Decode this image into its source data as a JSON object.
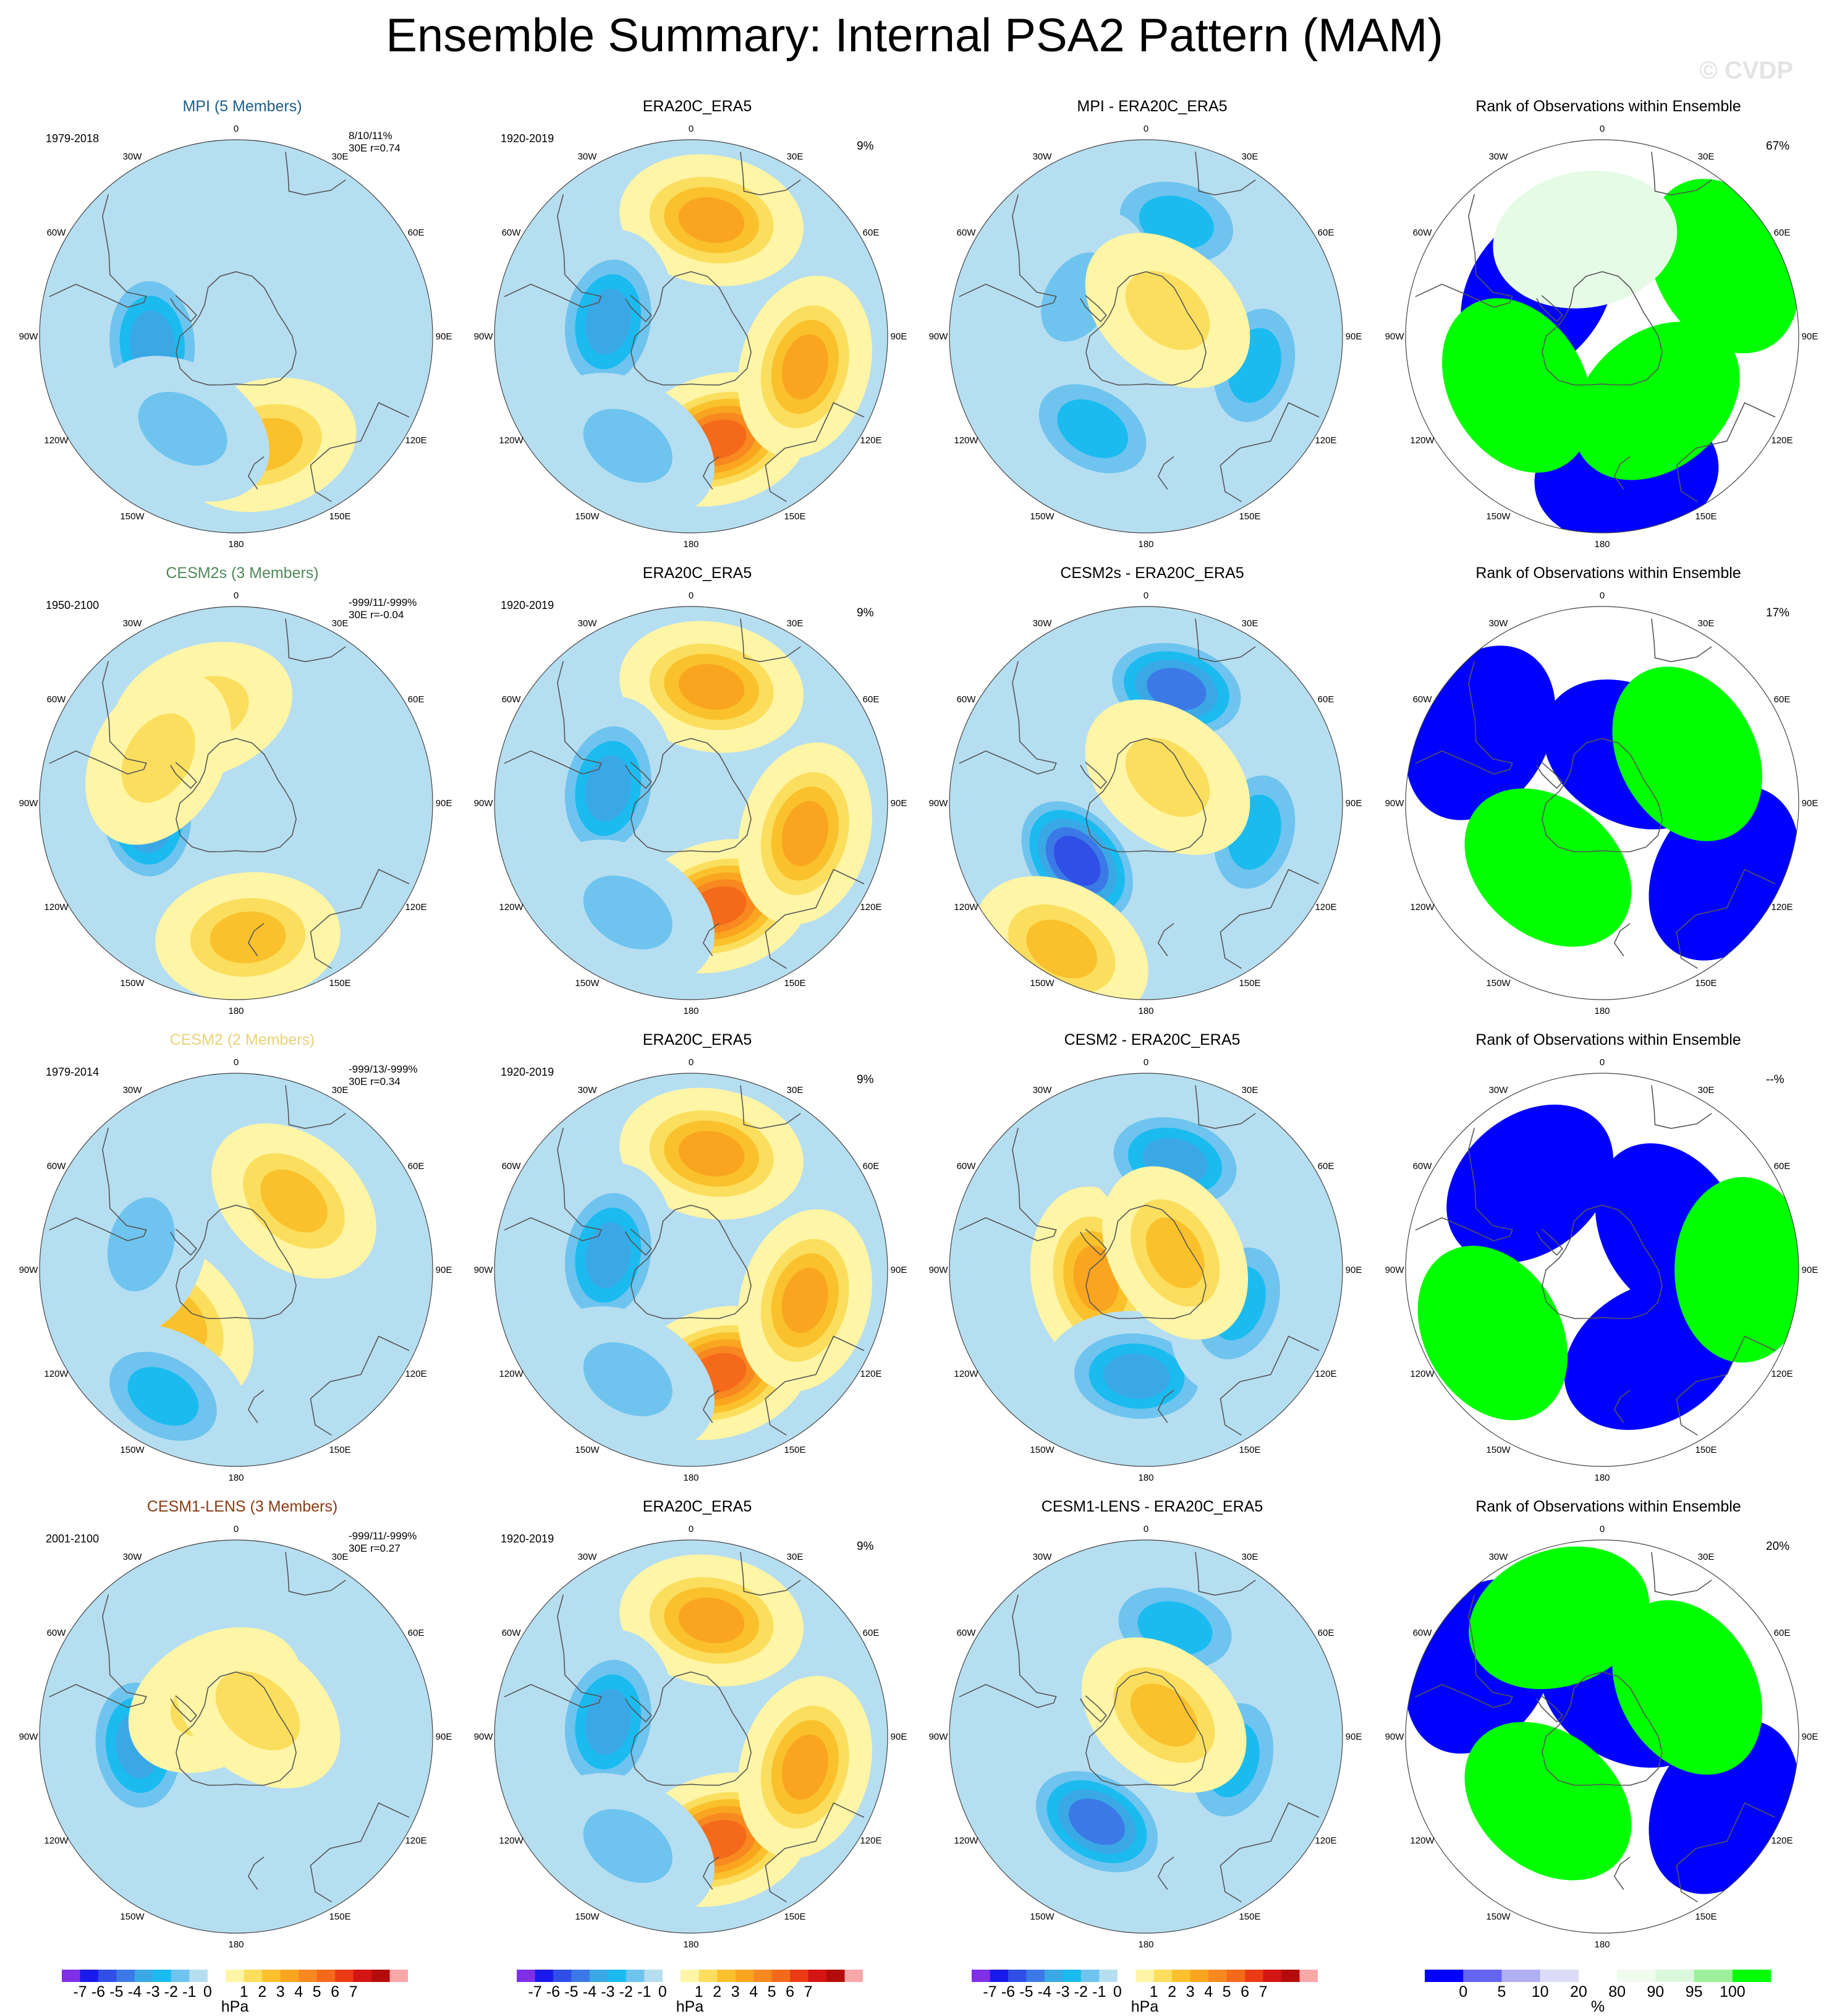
{
  "title": "Ensemble Summary: Internal PSA2 Pattern (MAM)",
  "watermark": "© CVDP",
  "longitude_labels": [
    "0",
    "30E",
    "60E",
    "90E",
    "120E",
    "150E",
    "180",
    "150W",
    "120W",
    "90W",
    "60W",
    "30W"
  ],
  "colors": {
    "land_outline": "#555555",
    "rank_blue": "#0000ff",
    "rank_green": "#00ff00",
    "rank_paleGreen": "#e6fbe6",
    "hpa_levels": [
      "#7f30e6",
      "#1a1aeb",
      "#2f4fe6",
      "#3b7ae6",
      "#3ba8e6",
      "#1bbbf0",
      "#6ec4ee",
      "#b6def1",
      "#ffffff",
      "#fff5a6",
      "#fbde5e",
      "#fac12c",
      "#f9a520",
      "#f88820",
      "#f46a1a",
      "#ea3b14",
      "#d51414",
      "#b40c0c",
      "#f9a8a8"
    ],
    "rank_levels": [
      "#0000ff",
      "#6464f0",
      "#b0b0f0",
      "#dcdcf8",
      "#ffffff",
      "#f0fbf0",
      "#dcf8dc",
      "#9cf09c",
      "#00ff00"
    ]
  },
  "chart_data": {
    "type": "heatmap",
    "projection": "south-polar stereographic",
    "units": "hPa",
    "rows": [
      {
        "model": "MPI (5 Members)",
        "model_color": "#1e5f8a",
        "model_period": "1979-2018",
        "stats_line1": "8/10/11%",
        "stats_line2": "30E      r=0.74",
        "obs_title": "ERA20C_ERA5",
        "obs_period": "1920-2019",
        "obs_pct": "9%",
        "diff_title": "MPI - ERA20C_ERA5",
        "rank_title": "Rank of Observations within Ensemble",
        "rank_pct": "67%",
        "model_centers": [
          {
            "lon": -95,
            "lat": -60,
            "value": -2.4
          },
          {
            "lon": 165,
            "lat": -50,
            "value": 1.6
          },
          {
            "lon": -150,
            "lat": -52,
            "value": -0.7
          }
        ],
        "obs_centers": [
          {
            "lon": 165,
            "lat": -52,
            "value": 4.2
          },
          {
            "lon": 10,
            "lat": -48,
            "value": 2.8
          },
          {
            "lon": -80,
            "lat": -60,
            "value": -3.0
          },
          {
            "lon": 105,
            "lat": -48,
            "value": 2.2
          },
          {
            "lon": -150,
            "lat": -45,
            "value": -0.9
          }
        ],
        "diff_centers": [
          {
            "lon": 15,
            "lat": -48,
            "value": -1.8
          },
          {
            "lon": -150,
            "lat": -52,
            "value": -1.8
          },
          {
            "lon": 105,
            "lat": -50,
            "value": -1.8
          },
          {
            "lon": -60,
            "lat": -62,
            "value": -0.8
          },
          {
            "lon": 40,
            "lat": -78,
            "value": 0.8
          }
        ],
        "rank_centers": [
          {
            "lon": 170,
            "lat": -40,
            "value": 0
          },
          {
            "lon": -55,
            "lat": -62,
            "value": 0
          },
          {
            "lon": 60,
            "lat": -40,
            "value": 100
          },
          {
            "lon": -120,
            "lat": -55,
            "value": 100
          },
          {
            "lon": 140,
            "lat": -60,
            "value": 100
          },
          {
            "lon": -10,
            "lat": -55,
            "value": 88
          }
        ]
      },
      {
        "model": "CESM2s (3 Members)",
        "model_color": "#4f8a5a",
        "model_period": "1950-2100",
        "stats_line1": "-999/11/-999%",
        "stats_line2": "30E r=-0.04",
        "obs_title": "ERA20C_ERA5",
        "obs_period": "1920-2019",
        "obs_pct": "9%",
        "diff_title": "CESM2s - ERA20C_ERA5",
        "rank_title": "Rank of Observations within Ensemble",
        "rank_pct": "17%",
        "model_centers": [
          {
            "lon": -95,
            "lat": -58,
            "value": -3.8
          },
          {
            "lon": 175,
            "lat": -42,
            "value": 1.3
          },
          {
            "lon": -20,
            "lat": -55,
            "value": 0.9
          },
          {
            "lon": -60,
            "lat": -58,
            "value": 0.8
          }
        ],
        "obs_centers": [
          {
            "lon": 165,
            "lat": -52,
            "value": 4.2
          },
          {
            "lon": 10,
            "lat": -48,
            "value": 2.8
          },
          {
            "lon": -80,
            "lat": -60,
            "value": -3.0
          },
          {
            "lon": 105,
            "lat": -48,
            "value": 2.2
          },
          {
            "lon": -150,
            "lat": -45,
            "value": -0.9
          }
        ],
        "diff_centers": [
          {
            "lon": -130,
            "lat": -58,
            "value": -4.6
          },
          {
            "lon": 15,
            "lat": -48,
            "value": -3.4
          },
          {
            "lon": 105,
            "lat": -50,
            "value": -2.0
          },
          {
            "lon": -150,
            "lat": -30,
            "value": 1.5
          },
          {
            "lon": 40,
            "lat": -78,
            "value": 1.0
          }
        ],
        "rank_centers": [
          {
            "lon": -60,
            "lat": -40,
            "value": 0
          },
          {
            "lon": 120,
            "lat": -40,
            "value": 0
          },
          {
            "lon": 30,
            "lat": -70,
            "value": 0
          },
          {
            "lon": 60,
            "lat": -55,
            "value": 100
          },
          {
            "lon": -140,
            "lat": -60,
            "value": 100
          }
        ]
      },
      {
        "model": "CESM2 (2 Members)",
        "model_color": "#e9d27a",
        "model_period": "1979-2014",
        "stats_line1": "-999/13/-999%",
        "stats_line2": "30E r=0.34",
        "obs_title": "ERA20C_ERA5",
        "obs_period": "1920-2019",
        "obs_pct": "9%",
        "diff_title": "CESM2 - ERA20C_ERA5",
        "rank_title": "Rank of Observations within Ensemble",
        "rank_pct": "--%",
        "model_centers": [
          {
            "lon": -130,
            "lat": -62,
            "value": 1.7
          },
          {
            "lon": 40,
            "lat": -58,
            "value": 1.4
          },
          {
            "lon": -150,
            "lat": -38,
            "value": -1.6
          },
          {
            "lon": -75,
            "lat": -55,
            "value": -0.8
          }
        ],
        "obs_centers": [
          {
            "lon": 165,
            "lat": -52,
            "value": 4.2
          },
          {
            "lon": 10,
            "lat": -48,
            "value": 2.8
          },
          {
            "lon": -80,
            "lat": -60,
            "value": -3.0
          },
          {
            "lon": 105,
            "lat": -48,
            "value": 2.2
          },
          {
            "lon": -150,
            "lat": -45,
            "value": -0.9
          }
        ],
        "diff_centers": [
          {
            "lon": -100,
            "lat": -72,
            "value": 3.0
          },
          {
            "lon": 15,
            "lat": -50,
            "value": -2.4
          },
          {
            "lon": -175,
            "lat": -52,
            "value": -2.3
          },
          {
            "lon": 110,
            "lat": -55,
            "value": -1.5
          },
          {
            "lon": 60,
            "lat": -78,
            "value": 1.1
          }
        ],
        "rank_centers": [
          {
            "lon": -40,
            "lat": -50,
            "value": 0
          },
          {
            "lon": 60,
            "lat": -62,
            "value": 0
          },
          {
            "lon": 150,
            "lat": -55,
            "value": 0
          },
          {
            "lon": -120,
            "lat": -45,
            "value": 100
          },
          {
            "lon": 90,
            "lat": -40,
            "value": 100
          }
        ]
      },
      {
        "model": "CESM1-LENS (3 Members)",
        "model_color": "#8a3a12",
        "model_period": "2001-2100",
        "stats_line1": "-999/11/-999%",
        "stats_line2": "30E r=0.27",
        "obs_title": "ERA20C_ERA5",
        "obs_period": "1920-2019",
        "obs_pct": "9%",
        "diff_title": "CESM1-LENS - ERA20C_ERA5",
        "rank_title": "Rank of Observations within Ensemble",
        "rank_pct": "20%",
        "model_centers": [
          {
            "lon": -95,
            "lat": -55,
            "value": -2.6
          },
          {
            "lon": -30,
            "lat": -75,
            "value": 1.0
          },
          {
            "lon": 40,
            "lat": -78,
            "value": 1.0
          }
        ],
        "obs_centers": [
          {
            "lon": 165,
            "lat": -52,
            "value": 4.2
          },
          {
            "lon": 10,
            "lat": -48,
            "value": 2.8
          },
          {
            "lon": -80,
            "lat": -60,
            "value": -3.0
          },
          {
            "lon": 105,
            "lat": -48,
            "value": 2.2
          },
          {
            "lon": -150,
            "lat": -45,
            "value": -0.9
          }
        ],
        "diff_centers": [
          {
            "lon": -150,
            "lat": -55,
            "value": -3.6
          },
          {
            "lon": 15,
            "lat": -50,
            "value": -1.6
          },
          {
            "lon": 105,
            "lat": -58,
            "value": -1.4
          },
          {
            "lon": 40,
            "lat": -80,
            "value": 2.0
          }
        ],
        "rank_centers": [
          {
            "lon": -60,
            "lat": -40,
            "value": 0
          },
          {
            "lon": 120,
            "lat": -40,
            "value": 0
          },
          {
            "lon": 30,
            "lat": -72,
            "value": 0
          },
          {
            "lon": 60,
            "lat": -55,
            "value": 100
          },
          {
            "lon": -140,
            "lat": -60,
            "value": 100
          },
          {
            "lon": -20,
            "lat": -45,
            "value": 100
          }
        ]
      }
    ],
    "colorbars": [
      {
        "ticks": [
          "-7",
          "-6",
          "-5",
          "-4",
          "-3",
          "-2",
          "-1",
          "0",
          "1",
          "2",
          "3",
          "4",
          "5",
          "6",
          "7"
        ],
        "unit": "hPa"
      },
      {
        "ticks": [
          "-7",
          "-6",
          "-5",
          "-4",
          "-3",
          "-2",
          "-1",
          "0",
          "1",
          "2",
          "3",
          "4",
          "5",
          "6",
          "7"
        ],
        "unit": "hPa"
      },
      {
        "ticks": [
          "-7",
          "-6",
          "-5",
          "-4",
          "-3",
          "-2",
          "-1",
          "0",
          "1",
          "2",
          "3",
          "4",
          "5",
          "6",
          "7"
        ],
        "unit": "hPa"
      },
      {
        "ticks": [
          "0",
          "5",
          "10",
          "20",
          "80",
          "90",
          "95",
          "100"
        ],
        "unit": "%"
      }
    ]
  }
}
